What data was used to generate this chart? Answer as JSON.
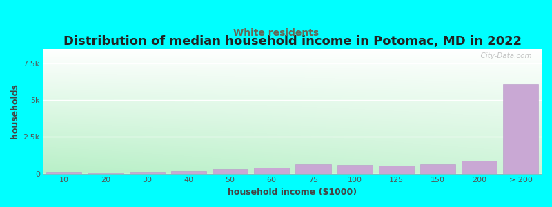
{
  "title": "Distribution of median household income in Potomac, MD in 2022",
  "subtitle": "White residents",
  "xlabel": "household income ($1000)",
  "ylabel": "households",
  "background_color": "#00FFFF",
  "bar_color": "#c9a8d4",
  "bar_edge_color": "#b898c8",
  "categories": [
    "10",
    "20",
    "30",
    "40",
    "50",
    "60",
    "75",
    "100",
    "125",
    "150",
    "200",
    "> 200"
  ],
  "values": [
    55,
    35,
    70,
    180,
    290,
    380,
    620,
    580,
    560,
    640,
    850,
    6100
  ],
  "ylim": [
    0,
    8500
  ],
  "yticks": [
    0,
    2500,
    5000,
    7500
  ],
  "ytick_labels": [
    "0",
    "2.5k",
    "5k",
    "7.5k"
  ],
  "title_fontsize": 13,
  "subtitle_fontsize": 10,
  "subtitle_color": "#666655",
  "axis_label_fontsize": 9,
  "tick_fontsize": 8,
  "watermark": "  City-Data.com",
  "gradient_colors": [
    "#b8f0c8",
    "#e8f8e8",
    "#f8fff8",
    "#ffffff"
  ],
  "grid_color": "#e8e8e8"
}
